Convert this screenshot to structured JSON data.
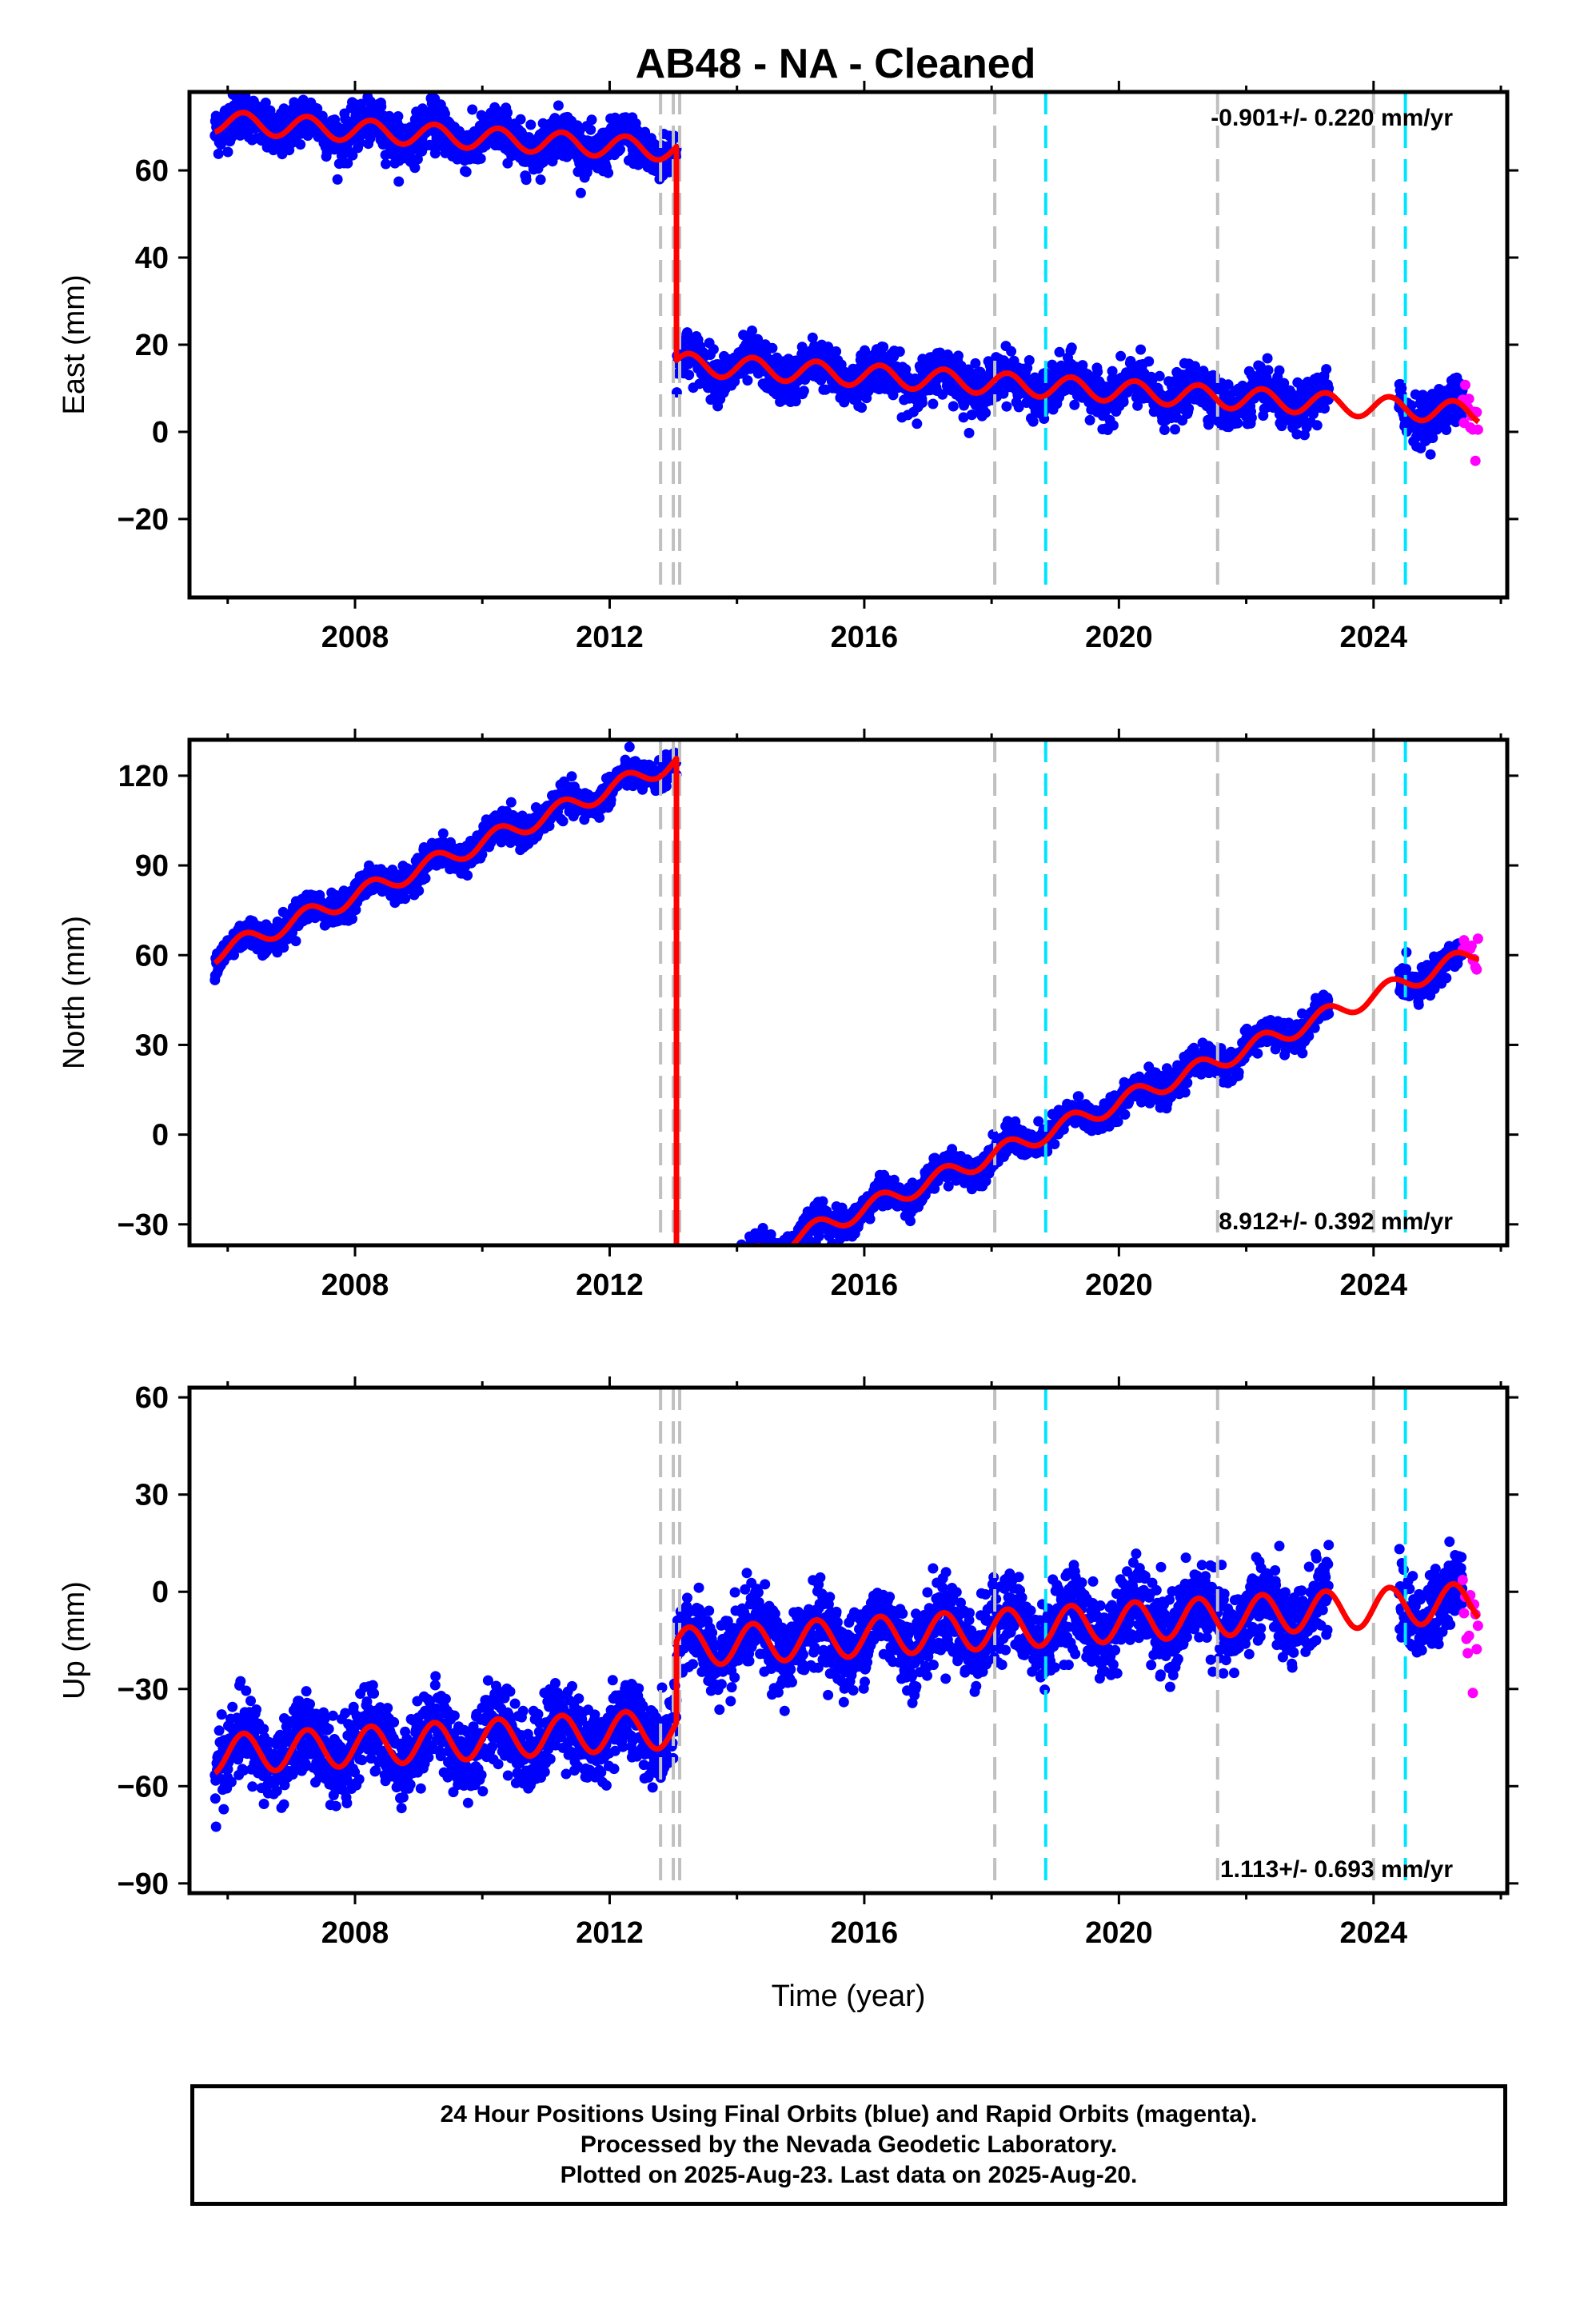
{
  "title": "AB48  - NA - Cleaned",
  "xlabel": "Time (year)",
  "footer": {
    "line1": "24 Hour Positions Using Final Orbits (blue) and Rapid Orbits (magenta).",
    "line2": "Processed by the Nevada Geodetic Laboratory.",
    "line3": "Plotted on 2025-Aug-23. Last data on 2025-Aug-20."
  },
  "colors": {
    "final": "#0000ff",
    "rapid": "#ff00ff",
    "model": "#ff0000",
    "equipment_change": "#c0c0c0",
    "earthquake": "#00e5ff"
  },
  "chart_data": [
    {
      "type": "scatter",
      "component": "east",
      "ylabel": "East (mm)",
      "rate_label": "-0.901+/- 0.220 mm/yr",
      "rate_position": "top-right",
      "xlim": [
        2005.4,
        2026.1
      ],
      "ylim": [
        -38,
        78
      ],
      "yticks": [
        -20,
        0,
        20,
        40,
        60
      ],
      "xticks": [
        2008,
        2012,
        2016,
        2020,
        2024
      ],
      "grid": false,
      "steps": [
        {
          "x": 2013.05,
          "offset": -49
        }
      ],
      "rate_mm_yr": -0.901,
      "annual_amplitude_mm": 2.5,
      "noise_mm": 2.6,
      "model_anchor": {
        "x": 2006.0,
        "y": 71
      },
      "series": [
        {
          "name": "Final Orbits",
          "x_range": [
            2005.8,
            2025.4
          ],
          "gap": [
            2023.3,
            2024.4
          ]
        },
        {
          "name": "Rapid Orbits",
          "x_range": [
            2025.4,
            2025.65
          ]
        }
      ],
      "vlines_gray": [
        2012.8,
        2013.0,
        2013.1,
        2018.05,
        2021.55,
        2024.0
      ],
      "vlines_cyan": [
        2018.85,
        2024.5
      ]
    },
    {
      "type": "scatter",
      "component": "north",
      "ylabel": "North (mm)",
      "rate_label": "8.912+/- 0.392 mm/yr",
      "rate_position": "bottom-right",
      "xlim": [
        2005.4,
        2026.1
      ],
      "ylim": [
        -37,
        132
      ],
      "yticks": [
        -30,
        0,
        30,
        60,
        90,
        120
      ],
      "xticks": [
        2008,
        2012,
        2016,
        2020,
        2024
      ],
      "grid": false,
      "steps": [
        {
          "x": 2013.05,
          "offset": -176
        }
      ],
      "rate_mm_yr": 8.912,
      "annual_amplitude_mm": 3.0,
      "noise_mm": 2.4,
      "model_anchor": {
        "x": 2006.0,
        "y": 62
      },
      "series": [
        {
          "name": "Final Orbits",
          "x_range": [
            2005.8,
            2025.4
          ],
          "gap": [
            2023.3,
            2024.4
          ]
        },
        {
          "name": "Rapid Orbits",
          "x_range": [
            2025.4,
            2025.65
          ]
        }
      ],
      "vlines_gray": [
        2012.8,
        2013.0,
        2013.1,
        2018.05,
        2021.55,
        2024.0
      ],
      "vlines_cyan": [
        2018.85,
        2024.5
      ]
    },
    {
      "type": "scatter",
      "component": "up",
      "ylabel": "Up (mm)",
      "rate_label": "1.113+/- 0.693 mm/yr",
      "rate_position": "bottom-right",
      "xlim": [
        2005.4,
        2026.1
      ],
      "ylim": [
        -93,
        63
      ],
      "yticks": [
        -90,
        -60,
        -30,
        0,
        30,
        60
      ],
      "xticks": [
        2008,
        2012,
        2016,
        2020,
        2024
      ],
      "grid": false,
      "steps": [
        {
          "x": 2013.05,
          "offset": 25
        }
      ],
      "rate_mm_yr": 1.113,
      "annual_amplitude_mm": 6.0,
      "noise_mm": 6.0,
      "model_anchor": {
        "x": 2006.0,
        "y": -50
      },
      "series": [
        {
          "name": "Final Orbits",
          "x_range": [
            2005.8,
            2025.4
          ],
          "gap": [
            2023.3,
            2024.4
          ]
        },
        {
          "name": "Rapid Orbits",
          "x_range": [
            2025.4,
            2025.65
          ]
        }
      ],
      "vlines_gray": [
        2012.8,
        2013.0,
        2013.1,
        2018.05,
        2021.55,
        2024.0
      ],
      "vlines_cyan": [
        2018.85,
        2024.5
      ]
    }
  ]
}
